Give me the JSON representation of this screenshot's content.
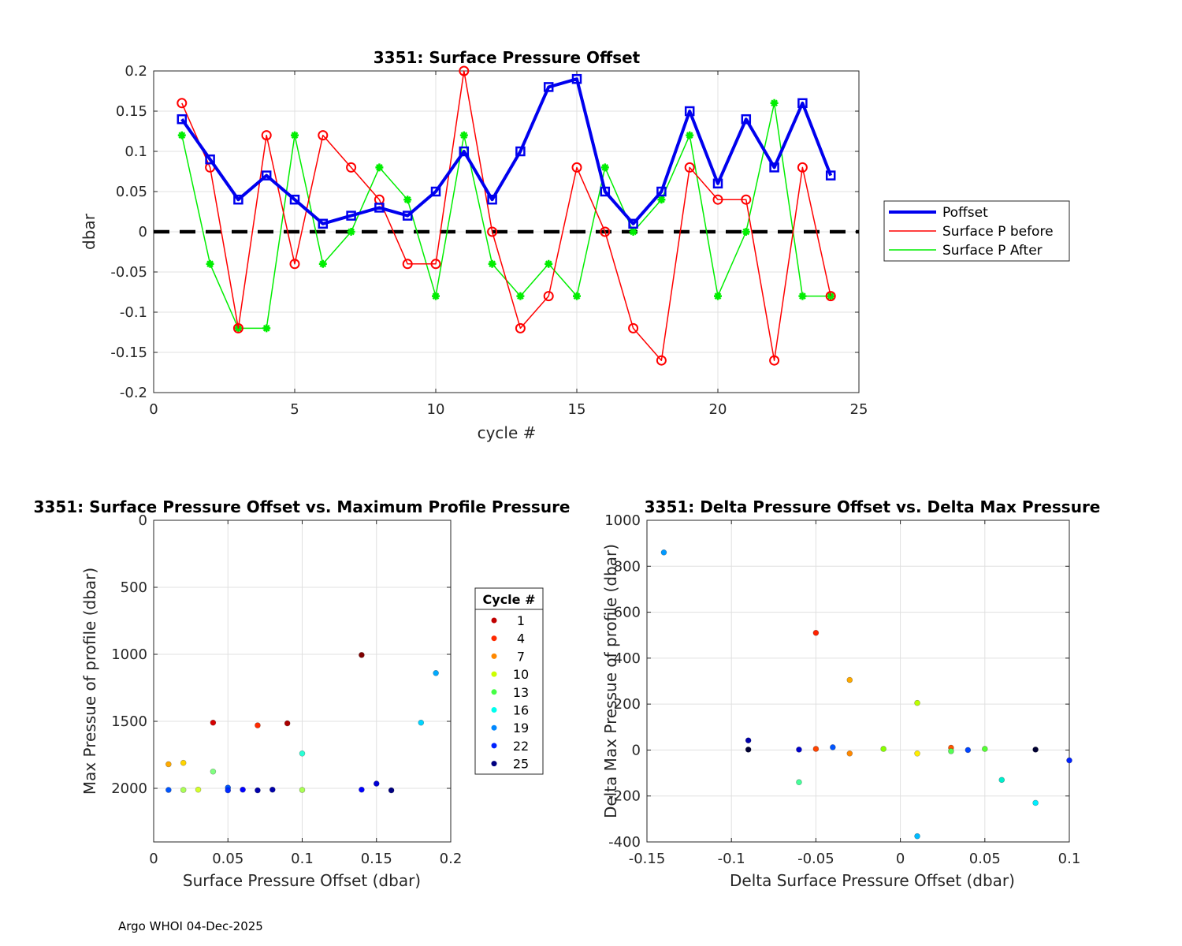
{
  "chart_data": [
    {
      "type": "line",
      "title": "3351: Surface Pressure Offset",
      "xlabel": "cycle #",
      "ylabel": "dbar",
      "xlim": [
        0,
        25
      ],
      "ylim": [
        -0.2,
        0.2
      ],
      "xticks": [
        0,
        5,
        10,
        15,
        20,
        25
      ],
      "xtick_labels": [
        "0",
        "5",
        "10",
        "15",
        "20",
        "25"
      ],
      "yticks": [
        -0.2,
        -0.15,
        -0.1,
        -0.05,
        0,
        0.05,
        0.1,
        0.15,
        0.2
      ],
      "ytick_labels": [
        "-0.2",
        "-0.15",
        "-0.1",
        "-0.05",
        "0",
        "0.05",
        "0.1",
        "0.15",
        "0.2"
      ],
      "grid": true,
      "legend_position": "right-outside",
      "x": [
        1,
        2,
        3,
        4,
        5,
        6,
        7,
        8,
        9,
        10,
        11,
        12,
        13,
        14,
        15,
        16,
        17,
        18,
        19,
        20,
        21,
        22,
        23,
        24
      ],
      "series": [
        {
          "name": "Poffset",
          "color": "#0000ee",
          "marker": "square",
          "values": [
            0.14,
            0.09,
            0.04,
            0.07,
            0.04,
            0.01,
            0.02,
            0.03,
            0.02,
            0.05,
            0.1,
            0.04,
            0.1,
            0.18,
            0.19,
            0.05,
            0.01,
            0.05,
            0.15,
            0.06,
            0.14,
            0.08,
            0.16,
            0.07
          ]
        },
        {
          "name": "Surface P before",
          "color": "#ff0000",
          "marker": "circle",
          "values": [
            0.16,
            0.08,
            -0.12,
            0.12,
            -0.04,
            0.12,
            0.08,
            0.04,
            -0.04,
            -0.04,
            0.2,
            0.0,
            -0.12,
            -0.08,
            0.08,
            0.0,
            -0.12,
            -0.16,
            0.08,
            0.04,
            0.04,
            -0.16,
            0.08,
            -0.08
          ]
        },
        {
          "name": "Surface P After",
          "color": "#00ee00",
          "marker": "asterisk",
          "values": [
            0.12,
            -0.04,
            -0.12,
            -0.12,
            0.12,
            -0.04,
            0.0,
            0.08,
            0.04,
            -0.08,
            0.12,
            -0.04,
            -0.08,
            -0.04,
            -0.08,
            0.08,
            0.0,
            0.04,
            0.12,
            -0.08,
            0.0,
            0.16,
            -0.08,
            -0.08
          ]
        }
      ],
      "reference_line": {
        "y": 0,
        "style": "dashed",
        "color": "#000000"
      }
    },
    {
      "type": "scatter",
      "title": "3351: Surface Pressure Offset vs. Maximum Profile Pressure",
      "xlabel": "Surface Pressure Offset (dbar)",
      "ylabel": "Max Pressue of profile (dbar)",
      "xlim": [
        0,
        0.2
      ],
      "ylim": [
        0,
        2400
      ],
      "y_reversed": true,
      "xticks": [
        0,
        0.05,
        0.1,
        0.15,
        0.2
      ],
      "xtick_labels": [
        "0",
        "0.05",
        "0.1",
        "0.15",
        "0.2"
      ],
      "yticks": [
        0,
        500,
        1000,
        1500,
        2000
      ],
      "ytick_labels": [
        "0",
        "500",
        "1000",
        "1500",
        "2000"
      ],
      "grid": true,
      "points": [
        {
          "x": 0.14,
          "y": 1005,
          "cycle": 1
        },
        {
          "x": 0.09,
          "y": 1515,
          "cycle": 2
        },
        {
          "x": 0.04,
          "y": 1510,
          "cycle": 3
        },
        {
          "x": 0.07,
          "y": 1530,
          "cycle": 5
        },
        {
          "x": 0.01,
          "y": 1820,
          "cycle": 8
        },
        {
          "x": 0.02,
          "y": 1810,
          "cycle": 9
        },
        {
          "x": 0.03,
          "y": 2010,
          "cycle": 11
        },
        {
          "x": 0.02,
          "y": 2012,
          "cycle": 12
        },
        {
          "x": 0.04,
          "y": 1875,
          "cycle": 13
        },
        {
          "x": 0.1,
          "y": 2012,
          "cycle": 12
        },
        {
          "x": 0.1,
          "y": 1740,
          "cycle": 15
        },
        {
          "x": 0.18,
          "y": 1510,
          "cycle": 17
        },
        {
          "x": 0.19,
          "y": 1140,
          "cycle": 18
        },
        {
          "x": 0.01,
          "y": 2012,
          "cycle": 20
        },
        {
          "x": 0.05,
          "y": 1995,
          "cycle": 20
        },
        {
          "x": 0.05,
          "y": 2015,
          "cycle": 21
        },
        {
          "x": 0.06,
          "y": 2010,
          "cycle": 22
        },
        {
          "x": 0.14,
          "y": 2010,
          "cycle": 22
        },
        {
          "x": 0.15,
          "y": 1965,
          "cycle": 23
        },
        {
          "x": 0.07,
          "y": 2015,
          "cycle": 24
        },
        {
          "x": 0.08,
          "y": 2010,
          "cycle": 24
        },
        {
          "x": 0.16,
          "y": 2015,
          "cycle": 25
        }
      ],
      "legend": {
        "title": "Cycle #",
        "entries": [
          {
            "label": "1",
            "color": "#c00000"
          },
          {
            "label": "4",
            "color": "#ff2a00"
          },
          {
            "label": "7",
            "color": "#ff8800"
          },
          {
            "label": "10",
            "color": "#ccff00"
          },
          {
            "label": "13",
            "color": "#44ff44"
          },
          {
            "label": "16",
            "color": "#00ffee"
          },
          {
            "label": "19",
            "color": "#0088ff"
          },
          {
            "label": "22",
            "color": "#0022ff"
          },
          {
            "label": "25",
            "color": "#000080"
          }
        ]
      }
    },
    {
      "type": "scatter",
      "title": "3351: Delta Pressure Offset vs. Delta Max Pressure",
      "xlabel": "Delta Surface Pressure Offset (dbar)",
      "ylabel": "Delta Max Pressue of profile (dbar)",
      "xlim": [
        -0.15,
        0.1
      ],
      "ylim": [
        -400,
        1000
      ],
      "xticks": [
        -0.15,
        -0.1,
        -0.05,
        0,
        0.05,
        0.1
      ],
      "xtick_labels": [
        "-0.15",
        "-0.1",
        "-0.05",
        "0",
        "0.05",
        "0.1"
      ],
      "yticks": [
        -400,
        -200,
        0,
        200,
        400,
        600,
        800,
        1000
      ],
      "ytick_labels": [
        "-400",
        "-200",
        "0",
        "200",
        "400",
        "600",
        "800",
        "1000"
      ],
      "grid": true,
      "points": [
        {
          "x": -0.14,
          "y": 860,
          "color": "#0099ff"
        },
        {
          "x": -0.05,
          "y": 510,
          "color": "#ff2200"
        },
        {
          "x": -0.03,
          "y": 305,
          "color": "#ffaa00"
        },
        {
          "x": 0.01,
          "y": 205,
          "color": "#bbff00"
        },
        {
          "x": -0.09,
          "y": 42,
          "color": "#0000aa"
        },
        {
          "x": -0.09,
          "y": 2,
          "color": "#000033"
        },
        {
          "x": -0.06,
          "y": 2,
          "color": "#0000cc"
        },
        {
          "x": -0.05,
          "y": 5,
          "color": "#ff4400"
        },
        {
          "x": -0.04,
          "y": 12,
          "color": "#0055ff"
        },
        {
          "x": -0.03,
          "y": -15,
          "color": "#ff8800"
        },
        {
          "x": -0.01,
          "y": 5,
          "color": "#88ff00"
        },
        {
          "x": 0.01,
          "y": -15,
          "color": "#ffee00"
        },
        {
          "x": 0.03,
          "y": 10,
          "color": "#ff5500"
        },
        {
          "x": 0.03,
          "y": -5,
          "color": "#55ff55"
        },
        {
          "x": 0.04,
          "y": 0,
          "color": "#0044ff"
        },
        {
          "x": 0.05,
          "y": 5,
          "color": "#55ff33"
        },
        {
          "x": 0.08,
          "y": 2,
          "color": "#000033"
        },
        {
          "x": 0.1,
          "y": -45,
          "color": "#0022ff"
        },
        {
          "x": -0.06,
          "y": -140,
          "color": "#44ff99"
        },
        {
          "x": 0.06,
          "y": -130,
          "color": "#00eecc"
        },
        {
          "x": 0.08,
          "y": -230,
          "color": "#00eeff"
        },
        {
          "x": 0.01,
          "y": -375,
          "color": "#00bbff"
        }
      ]
    }
  ],
  "footer": "Argo WHOI 04-Dec-2025"
}
